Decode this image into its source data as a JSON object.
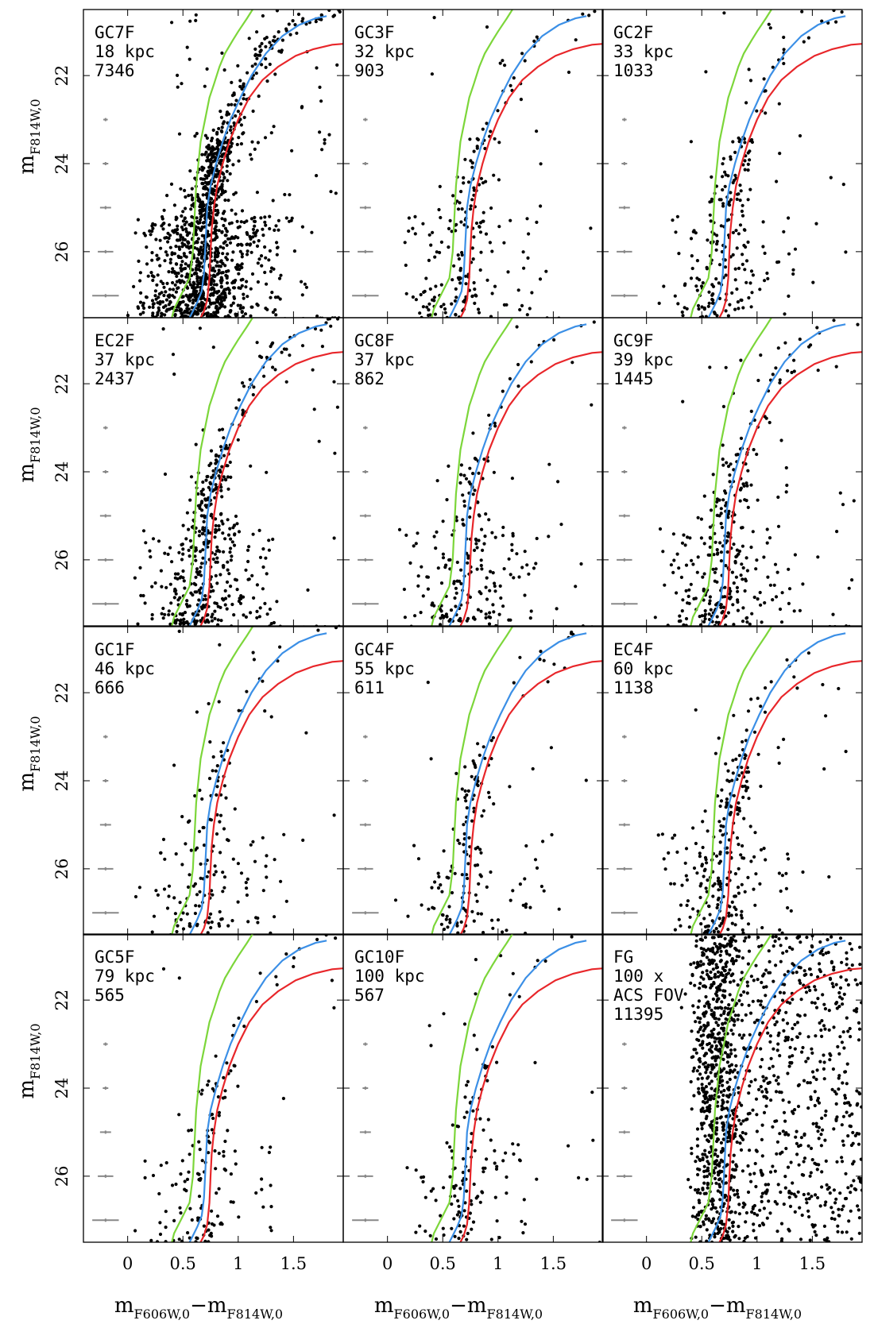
{
  "chart_data": {
    "type": "scatter",
    "layout": "4x3 grid of color-magnitude diagrams",
    "xlabel": "m_F606W,0 − m_F814W,0",
    "ylabel": "m_F814W,0",
    "xlim": [
      -0.4,
      1.95
    ],
    "ylim": [
      27.5,
      20.5
    ],
    "y_axis_inverted": true,
    "xticks": [
      0,
      0.5,
      1,
      1.5
    ],
    "xtick_labels": [
      "0",
      "0.5",
      "1",
      "1.5"
    ],
    "yticks": [
      22,
      24,
      26
    ],
    "ytick_labels": [
      "22",
      "24",
      "26"
    ],
    "isochrones": [
      {
        "name": "green",
        "color": "#7cd63a",
        "x": [
          0.4,
          0.42,
          0.48,
          0.56,
          0.59,
          0.6,
          0.61,
          0.62,
          0.64,
          0.66,
          0.7,
          0.74,
          0.78,
          0.83,
          0.88,
          0.95,
          1.0,
          1.08,
          1.13
        ],
        "y": [
          27.5,
          27.3,
          27.0,
          26.6,
          26.0,
          25.5,
          25.0,
          24.5,
          24.0,
          23.5,
          23.0,
          22.5,
          22.2,
          21.8,
          21.5,
          21.2,
          21.0,
          20.7,
          20.5
        ]
      },
      {
        "name": "blue",
        "color": "#3b8fe6",
        "x": [
          0.56,
          0.59,
          0.63,
          0.67,
          0.69,
          0.7,
          0.71,
          0.72,
          0.75,
          0.8,
          0.86,
          0.93,
          1.02,
          1.12,
          1.25,
          1.4,
          1.55,
          1.7,
          1.8
        ],
        "y": [
          27.5,
          27.35,
          27.15,
          26.9,
          26.5,
          26.0,
          25.5,
          25.0,
          24.5,
          24.0,
          23.5,
          23.0,
          22.5,
          22.0,
          21.5,
          21.1,
          20.85,
          20.7,
          20.65
        ]
      },
      {
        "name": "red",
        "color": "#e8262a",
        "x": [
          0.66,
          0.69,
          0.72,
          0.74,
          0.75,
          0.76,
          0.78,
          0.81,
          0.86,
          0.92,
          1.0,
          1.1,
          1.22,
          1.36,
          1.52,
          1.68,
          1.85,
          1.95
        ],
        "y": [
          27.5,
          27.35,
          27.1,
          26.6,
          26.0,
          25.5,
          25.0,
          24.5,
          24.0,
          23.5,
          23.0,
          22.5,
          22.1,
          21.8,
          21.55,
          21.4,
          21.3,
          21.28
        ]
      }
    ],
    "error_bars": [
      {
        "mag": 23,
        "color_err": 0.02
      },
      {
        "mag": 24,
        "color_err": 0.025
      },
      {
        "mag": 25,
        "color_err": 0.05
      },
      {
        "mag": 26,
        "color_err": 0.07
      },
      {
        "mag": 27,
        "color_err": 0.12
      }
    ],
    "panels": [
      {
        "field": "GC7F",
        "distance": "18 kpc",
        "count": "7346",
        "density": 1.0,
        "spread": 1.0
      },
      {
        "field": "GC3F",
        "distance": "32 kpc",
        "count": "903",
        "density": 0.17,
        "spread": 1.0
      },
      {
        "field": "GC2F",
        "distance": "33 kpc",
        "count": "1033",
        "density": 0.19,
        "spread": 1.0
      },
      {
        "field": "EC2F",
        "distance": "37 kpc",
        "count": "2437",
        "density": 0.38,
        "spread": 1.0
      },
      {
        "field": "GC8F",
        "distance": "37 kpc",
        "count": "862",
        "density": 0.17,
        "spread": 1.0
      },
      {
        "field": "GC9F",
        "distance": "39 kpc",
        "count": "1445",
        "density": 0.25,
        "spread": 1.0
      },
      {
        "field": "GC1F",
        "distance": "46 kpc",
        "count": "666",
        "density": 0.14,
        "spread": 1.0
      },
      {
        "field": "GC4F",
        "distance": "55 kpc",
        "count": "611",
        "density": 0.13,
        "spread": 1.0
      },
      {
        "field": "EC4F",
        "distance": "60 kpc",
        "count": "1138",
        "density": 0.21,
        "spread": 1.0
      },
      {
        "field": "GC5F",
        "distance": "79 kpc",
        "count": "565",
        "density": 0.12,
        "spread": 1.0
      },
      {
        "field": "GC10F",
        "distance": "100 kpc",
        "count": "567",
        "density": 0.12,
        "spread": 1.0
      },
      {
        "field": "FG",
        "distance": "100 x",
        "extra": "ACS FOV",
        "count": "11395",
        "density": 1.0,
        "spread": 1.0,
        "foreground": true
      }
    ]
  },
  "labels": {
    "y_main": "m",
    "y_sub": "F814W,0",
    "x_main1": "m",
    "x_sub1": "F606W,0",
    "x_dash": "−",
    "x_main2": "m",
    "x_sub2": "F814W,0"
  }
}
